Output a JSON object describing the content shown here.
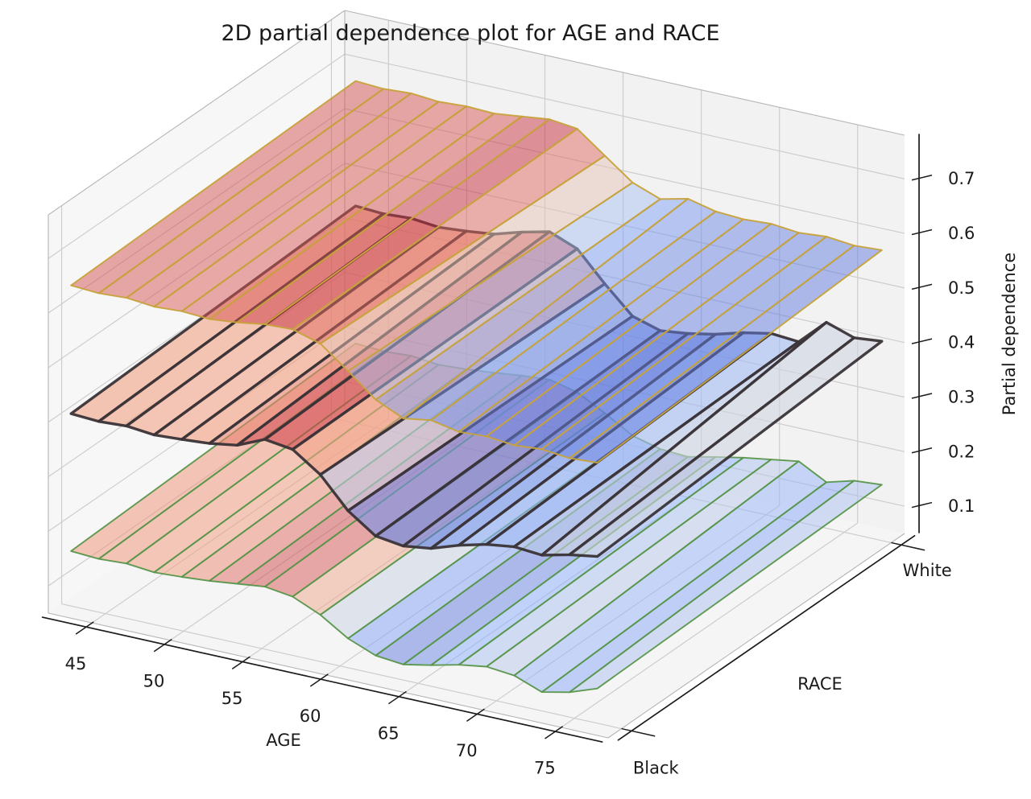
{
  "figure": {
    "title": "2D partial dependence plot for AGE and RACE"
  },
  "chart_data": {
    "type": "surface3d",
    "title": "2D partial dependence plot for AGE and RACE",
    "x_axis": {
      "label": "AGE",
      "ticks": [
        45,
        50,
        55,
        60,
        65,
        70,
        75
      ],
      "tick_labels": [
        "45",
        "50",
        "55",
        "60",
        "65",
        "70",
        "75"
      ],
      "range": [
        42.2,
        78.0
      ]
    },
    "y_axis": {
      "label": "RACE",
      "categories": [
        "Black",
        "White"
      ]
    },
    "z_axis": {
      "label": "Partial dependence",
      "ticks": [
        0.1,
        0.2,
        0.3,
        0.4,
        0.5,
        0.6,
        0.7
      ],
      "tick_labels": [
        "0.1",
        "0.2",
        "0.3",
        "0.4",
        "0.5",
        "0.6",
        "0.7"
      ],
      "range": [
        0.05,
        0.78
      ]
    },
    "colormap": "coolwarm",
    "grid": true,
    "ages": [
      42.2,
      44.1,
      46.0,
      47.9,
      49.7,
      51.6,
      53.5,
      55.4,
      57.3,
      59.2,
      61.0,
      62.9,
      64.8,
      66.7,
      68.6,
      70.5,
      72.3,
      74.2,
      76.1,
      78.0
    ],
    "surfaces": [
      {
        "name": "bottom-surface",
        "edge_color": "#57964a",
        "line_width": 1.9,
        "fill_alpha": 0.5,
        "z_black": [
          0.163,
          0.16,
          0.163,
          0.158,
          0.161,
          0.165,
          0.171,
          0.177,
          0.17,
          0.148,
          0.116,
          0.096,
          0.091,
          0.101,
          0.113,
          0.121,
          0.116,
          0.097,
          0.108,
          0.126
        ],
        "z_white": [
          0.184,
          0.181,
          0.184,
          0.179,
          0.182,
          0.187,
          0.193,
          0.197,
          0.185,
          0.158,
          0.128,
          0.115,
          0.112,
          0.123,
          0.133,
          0.141,
          0.149,
          0.122,
          0.136,
          0.14
        ]
      },
      {
        "name": "middle-surface",
        "edge_color": "#3a3337",
        "line_width": 3.4,
        "fill_alpha": 0.6,
        "z_black": [
          0.415,
          0.412,
          0.415,
          0.41,
          0.413,
          0.417,
          0.425,
          0.447,
          0.44,
          0.405,
          0.35,
          0.315,
          0.308,
          0.315,
          0.332,
          0.345,
          0.352,
          0.348,
          0.36,
          0.368
        ],
        "z_white": [
          0.436,
          0.433,
          0.436,
          0.431,
          0.435,
          0.441,
          0.456,
          0.468,
          0.448,
          0.395,
          0.347,
          0.332,
          0.338,
          0.348,
          0.362,
          0.372,
          0.368,
          0.415,
          0.398,
          0.403
        ]
      },
      {
        "name": "top-surface",
        "edge_color": "#c7a23c",
        "line_width": 2.0,
        "fill_alpha": 0.5,
        "z_black": [
          0.65,
          0.647,
          0.65,
          0.645,
          0.648,
          0.645,
          0.65,
          0.658,
          0.66,
          0.645,
          0.606,
          0.565,
          0.542,
          0.55,
          0.54,
          0.543,
          0.538,
          0.542,
          0.537,
          0.54
        ],
        "z_white": [
          0.665,
          0.662,
          0.665,
          0.661,
          0.664,
          0.662,
          0.668,
          0.674,
          0.668,
          0.63,
          0.592,
          0.573,
          0.585,
          0.573,
          0.57,
          0.573,
          0.568,
          0.572,
          0.567,
          0.57
        ]
      }
    ]
  },
  "style": {
    "pane_left": "#f7f7f7",
    "pane_back": "#f2f2f2",
    "pane_floor": "#f5f5f5",
    "grid_color": "#cdcdcd",
    "box_edge_color": "#b5b5b5",
    "spine_color": "#1b1b1b",
    "text_color": "#1a1a1a"
  }
}
